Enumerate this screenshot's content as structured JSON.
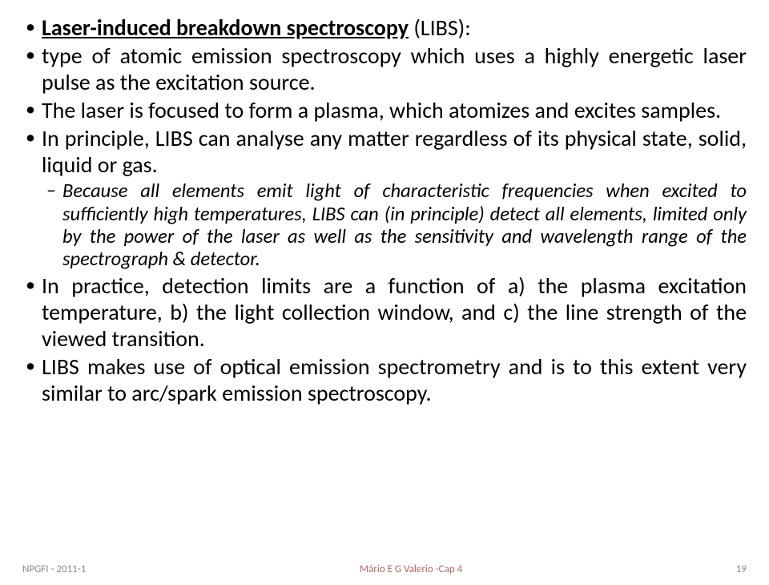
{
  "typography": {
    "body_fontsize_pt": 21,
    "sub_fontsize_pt": 18,
    "footer_fontsize_pt": 10,
    "font_family": "Calibri",
    "text_color": "#000000",
    "footer_color": "#8a8a8a",
    "footer_center_color": "#b36666",
    "background": "#ffffff"
  },
  "title_prefix": "Laser-induced breakdown spectroscopy",
  "title_suffix": " (LIBS):",
  "bullets": {
    "b1": "type of atomic emission spectroscopy which uses a highly energetic laser pulse as the excitation source.",
    "b2": "The laser is focused to form a plasma, which atomizes and excites samples.",
    "b3": "In principle, LIBS can analyse any matter regardless of its physical state, solid, liquid or gas.",
    "b3_sub": "Because all elements emit light of characteristic frequencies when excited to sufficiently high temperatures, LIBS can (in principle) detect all elements, limited only by the power of the laser as well as the sensitivity and wavelength range of the spectrograph & detector.",
    "b4": "In practice, detection limits are a function of a) the plasma excitation temperature, b) the light collection window, and c) the line strength of the viewed transition.",
    "b5": "LIBS makes use of optical emission spectrometry and is to this extent very similar to arc/spark emission spectroscopy."
  },
  "footer": {
    "left": "NPGFI - 2011-1",
    "center": "Mário E G Valerio -Cap 4",
    "page": "19"
  }
}
